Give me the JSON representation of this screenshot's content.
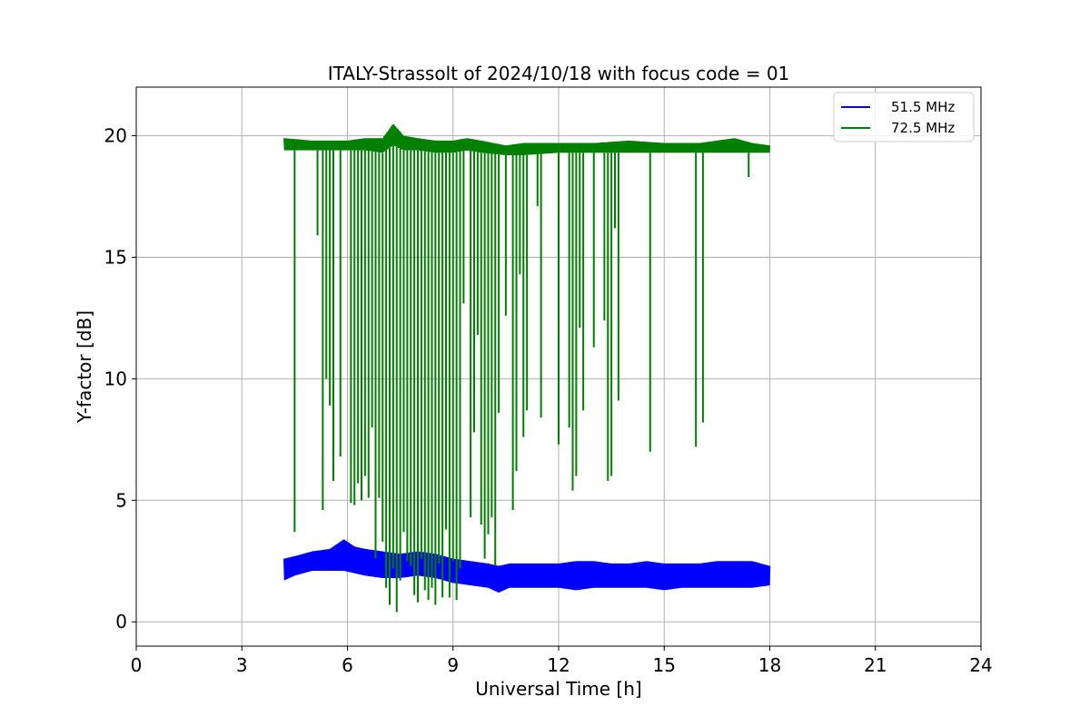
{
  "chart_data": {
    "type": "line",
    "title": "ITALY-Strassolt of 2024/10/18 with focus code = 01",
    "xlabel": "Universal Time [h]",
    "ylabel": "Y-factor [dB]",
    "xlim": [
      0,
      24
    ],
    "ylim": [
      -1,
      22
    ],
    "xticks": [
      0,
      3,
      6,
      9,
      12,
      15,
      18,
      21,
      24
    ],
    "yticks": [
      0,
      5,
      10,
      15,
      20
    ],
    "grid": true,
    "legend_position": "top-right",
    "series": [
      {
        "name": "51.5 MHz",
        "color": "#0000ff",
        "band": true,
        "x": [
          4.2,
          4.5,
          5.0,
          5.5,
          5.9,
          6.2,
          6.5,
          7.0,
          7.5,
          8.0,
          8.5,
          9.0,
          9.5,
          10.0,
          10.3,
          10.6,
          11.0,
          11.5,
          12.0,
          12.5,
          13.0,
          13.5,
          14.0,
          14.5,
          15.0,
          15.5,
          16.0,
          16.5,
          17.0,
          17.5,
          18.0
        ],
        "low": [
          1.7,
          1.9,
          2.1,
          2.1,
          2.1,
          2.0,
          1.9,
          1.8,
          1.8,
          1.9,
          1.8,
          1.6,
          1.5,
          1.4,
          1.2,
          1.4,
          1.4,
          1.4,
          1.4,
          1.3,
          1.4,
          1.4,
          1.4,
          1.4,
          1.3,
          1.4,
          1.4,
          1.4,
          1.4,
          1.4,
          1.5
        ],
        "high": [
          2.6,
          2.7,
          2.9,
          3.0,
          3.4,
          3.1,
          3.0,
          2.9,
          2.8,
          2.9,
          2.8,
          2.6,
          2.5,
          2.4,
          2.3,
          2.4,
          2.4,
          2.4,
          2.4,
          2.5,
          2.5,
          2.4,
          2.4,
          2.5,
          2.4,
          2.4,
          2.4,
          2.5,
          2.5,
          2.5,
          2.3
        ]
      },
      {
        "name": "72.5 MHz",
        "color": "#008000",
        "band": true,
        "x": [
          4.2,
          5.0,
          6.0,
          6.5,
          7.0,
          7.3,
          7.6,
          8.0,
          8.5,
          9.0,
          9.4,
          9.8,
          10.5,
          11.0,
          12.0,
          13.0,
          14.0,
          15.0,
          16.0,
          16.5,
          17.0,
          17.5,
          18.0
        ],
        "low": [
          19.4,
          19.4,
          19.4,
          19.4,
          19.3,
          19.6,
          19.4,
          19.4,
          19.3,
          19.3,
          19.4,
          19.3,
          19.2,
          19.2,
          19.3,
          19.3,
          19.3,
          19.3,
          19.3,
          19.3,
          19.3,
          19.3,
          19.3
        ],
        "high": [
          19.9,
          19.8,
          19.8,
          19.9,
          19.9,
          20.5,
          20.0,
          19.9,
          19.8,
          19.8,
          19.9,
          19.8,
          19.6,
          19.7,
          19.7,
          19.7,
          19.8,
          19.7,
          19.7,
          19.8,
          19.9,
          19.7,
          19.6
        ],
        "dropouts": [
          [
            4.5,
            3.7
          ],
          [
            5.15,
            15.9
          ],
          [
            5.3,
            4.6
          ],
          [
            5.4,
            10.0
          ],
          [
            5.5,
            8.9
          ],
          [
            5.6,
            5.8
          ],
          [
            5.8,
            6.8
          ],
          [
            6.1,
            4.9
          ],
          [
            6.2,
            4.8
          ],
          [
            6.3,
            5.7
          ],
          [
            6.4,
            5.0
          ],
          [
            6.5,
            6.0
          ],
          [
            6.6,
            5.1
          ],
          [
            6.7,
            8.0
          ],
          [
            6.8,
            2.6
          ],
          [
            6.9,
            5.1
          ],
          [
            7.0,
            3.3
          ],
          [
            7.1,
            1.4
          ],
          [
            7.2,
            0.7
          ],
          [
            7.3,
            2.2
          ],
          [
            7.4,
            0.4
          ],
          [
            7.5,
            1.7
          ],
          [
            7.6,
            3.7
          ],
          [
            7.7,
            2.5
          ],
          [
            7.8,
            2.3
          ],
          [
            7.9,
            1.1
          ],
          [
            8.0,
            0.8
          ],
          [
            8.1,
            2.6
          ],
          [
            8.2,
            1.3
          ],
          [
            8.3,
            0.9
          ],
          [
            8.4,
            1.4
          ],
          [
            8.5,
            0.7
          ],
          [
            8.6,
            2.4
          ],
          [
            8.7,
            1.0
          ],
          [
            8.8,
            3.8
          ],
          [
            8.9,
            1.0
          ],
          [
            9.0,
            2.5
          ],
          [
            9.1,
            0.9
          ],
          [
            9.2,
            2.2
          ],
          [
            9.3,
            13.1
          ],
          [
            9.5,
            4.3
          ],
          [
            9.6,
            7.8
          ],
          [
            9.7,
            11.8
          ],
          [
            9.8,
            4.0
          ],
          [
            9.9,
            2.6
          ],
          [
            10.0,
            3.6
          ],
          [
            10.1,
            4.3
          ],
          [
            10.2,
            2.3
          ],
          [
            10.3,
            8.6
          ],
          [
            10.5,
            12.6
          ],
          [
            10.7,
            4.6
          ],
          [
            10.8,
            6.2
          ],
          [
            10.9,
            14.3
          ],
          [
            11.0,
            7.6
          ],
          [
            11.1,
            8.7
          ],
          [
            11.4,
            17.1
          ],
          [
            11.5,
            8.4
          ],
          [
            12.0,
            7.3
          ],
          [
            12.3,
            8.0
          ],
          [
            12.4,
            5.4
          ],
          [
            12.5,
            6.0
          ],
          [
            12.6,
            12.1
          ],
          [
            12.7,
            8.7
          ],
          [
            13.0,
            11.3
          ],
          [
            13.3,
            12.4
          ],
          [
            13.4,
            5.8
          ],
          [
            13.5,
            6.0
          ],
          [
            13.6,
            16.2
          ],
          [
            13.7,
            9.1
          ],
          [
            14.6,
            7.0
          ],
          [
            15.9,
            7.2
          ],
          [
            16.1,
            8.2
          ],
          [
            17.4,
            18.3
          ]
        ]
      }
    ]
  }
}
